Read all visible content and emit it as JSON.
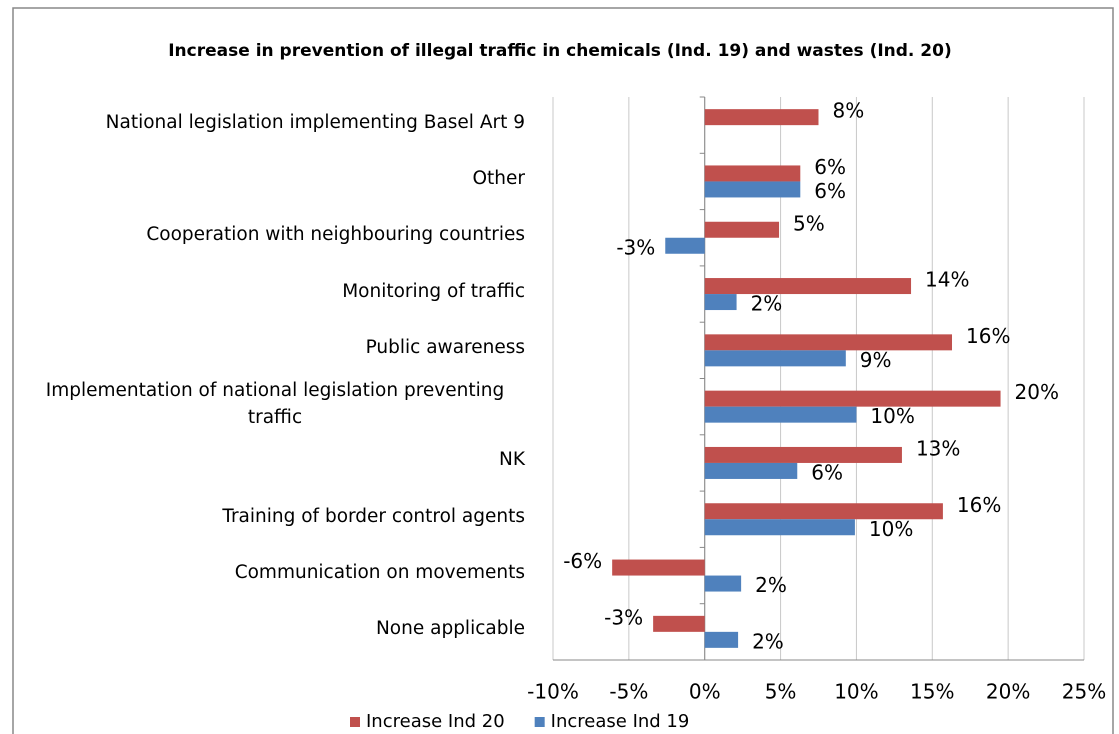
{
  "chart_data": {
    "type": "hbar",
    "title": "Increase in prevention of illegal traffic in chemicals (Ind. 19) and wastes (Ind. 20)",
    "categories": [
      "National legislation implementing Basel Art 9",
      "Other",
      "Cooperation with neighbouring countries",
      "Monitoring of traffic",
      "Public awareness",
      "Implementation of national legislation preventing traffic",
      "NK",
      "Training of border control agents",
      "Communication on movements",
      "None applicable"
    ],
    "series": [
      {
        "name": "Increase Ind 20",
        "color": "#c0504d",
        "values": [
          7.5,
          6.3,
          4.9,
          13.6,
          16.3,
          19.5,
          13.0,
          15.7,
          -6.1,
          -3.4
        ],
        "value_labels": [
          "8%",
          "6%",
          "5%",
          "14%",
          "16%",
          "20%",
          "13%",
          "16%",
          "-6%",
          "-3%"
        ]
      },
      {
        "name": "Increase Ind 19",
        "color": "#4f81bd",
        "values": [
          null,
          6.3,
          -2.6,
          2.1,
          9.3,
          10.0,
          6.1,
          9.9,
          2.4,
          2.2
        ],
        "value_labels": [
          null,
          "6%",
          "-3%",
          "2%",
          "9%",
          "10%",
          "6%",
          "10%",
          "2%",
          "2%"
        ]
      }
    ],
    "xlim": [
      -10,
      25
    ],
    "xticks": [
      {
        "value": -10,
        "label": "-10%"
      },
      {
        "value": -5,
        "label": "-5%"
      },
      {
        "value": 0,
        "label": "0%"
      },
      {
        "value": 5,
        "label": "5%"
      },
      {
        "value": 10,
        "label": "10%"
      },
      {
        "value": 15,
        "label": "15%"
      },
      {
        "value": 20,
        "label": "20%"
      },
      {
        "value": 25,
        "label": "25%"
      }
    ],
    "grid": true,
    "legend": "bottom"
  }
}
